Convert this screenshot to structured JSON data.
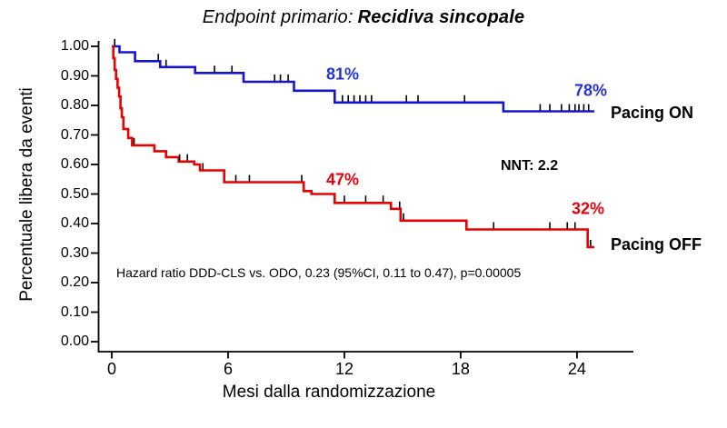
{
  "title": {
    "prefix": "Endpoint primario:",
    "emphasis": "Recidiva sincopale"
  },
  "colors": {
    "pacing_on_line": "#1515cf",
    "pacing_on_text": "#2433d6",
    "pacing_off_line": "#ea0000",
    "pacing_off_text": "#e8000b",
    "axis": "#000000"
  },
  "series_labels": {
    "pacing_on": "Pacing ON",
    "pacing_off": "Pacing OFF"
  },
  "annotations": {
    "nnt": "NNT: 2.2",
    "hazard_ratio": "Hazard ratio DDD-CLS vs. ODO, 0.23 (95%CI, 0.11 to 0.47), p=0.00005",
    "pacing_on_12m": "81%",
    "pacing_on_24m": "78%",
    "pacing_off_12m": "47%",
    "pacing_off_24m": "32%"
  },
  "chart_data": {
    "type": "line",
    "subtype": "kaplan_meier_step",
    "title": "Endpoint primario: Recidiva sincopale",
    "xlabel": "Mesi dalla randomizzazione",
    "ylabel": "Percentuale libera da eventi",
    "xlim": [
      0,
      26
    ],
    "ylim": [
      0,
      1
    ],
    "x_ticks": [
      0,
      6,
      12,
      18,
      24
    ],
    "y_ticks": [
      "1.00",
      "0.90",
      "0.80",
      "0.70",
      "0.60",
      "0.50",
      "0.40",
      "0.30",
      "0.20",
      "0.10",
      "0.00"
    ],
    "grid": false,
    "legend_position": "right-of-curves",
    "series": [
      {
        "name": "Pacing ON",
        "color_key": "pacing_on_line",
        "value_at_12m": 0.81,
        "value_at_24m": 0.78,
        "points": [
          [
            0,
            1.0
          ],
          [
            0.4,
            0.98
          ],
          [
            1.2,
            0.95
          ],
          [
            2.5,
            0.93
          ],
          [
            4.3,
            0.91
          ],
          [
            6.8,
            0.88
          ],
          [
            9.4,
            0.85
          ],
          [
            11.5,
            0.81
          ],
          [
            20.2,
            0.78
          ],
          [
            24.9,
            0.78
          ]
        ],
        "censor_months": [
          0.15,
          2.4,
          2.8,
          5.3,
          6.2,
          8.4,
          8.7,
          9.1,
          11.9,
          12.2,
          12.5,
          12.8,
          13.1,
          13.4,
          15.2,
          15.8,
          18.2,
          22.1,
          22.6,
          23.2,
          23.6,
          23.9,
          24.1,
          24.35,
          24.6
        ]
      },
      {
        "name": "Pacing OFF",
        "color_key": "pacing_off_line",
        "value_at_12m": 0.47,
        "value_at_24m": 0.32,
        "points": [
          [
            0,
            1.0
          ],
          [
            0.08,
            0.96
          ],
          [
            0.15,
            0.92
          ],
          [
            0.22,
            0.89
          ],
          [
            0.3,
            0.86
          ],
          [
            0.38,
            0.83
          ],
          [
            0.45,
            0.79
          ],
          [
            0.52,
            0.76
          ],
          [
            0.6,
            0.72
          ],
          [
            0.85,
            0.69
          ],
          [
            1.05,
            0.665
          ],
          [
            2.2,
            0.645
          ],
          [
            2.8,
            0.625
          ],
          [
            3.45,
            0.61
          ],
          [
            4.25,
            0.6
          ],
          [
            4.55,
            0.58
          ],
          [
            5.8,
            0.54
          ],
          [
            9.9,
            0.51
          ],
          [
            10.3,
            0.5
          ],
          [
            11.5,
            0.47
          ],
          [
            14.4,
            0.45
          ],
          [
            14.9,
            0.41
          ],
          [
            18.3,
            0.38
          ],
          [
            24.55,
            0.32
          ],
          [
            24.9,
            0.32
          ]
        ],
        "censor_months": [
          1.15,
          3.5,
          3.9,
          4.7,
          6.4,
          7.1,
          9.8,
          12.0,
          13.1,
          14.0,
          14.85,
          15.05,
          19.7,
          22.6,
          23.5,
          23.9,
          24.7
        ]
      }
    ]
  }
}
